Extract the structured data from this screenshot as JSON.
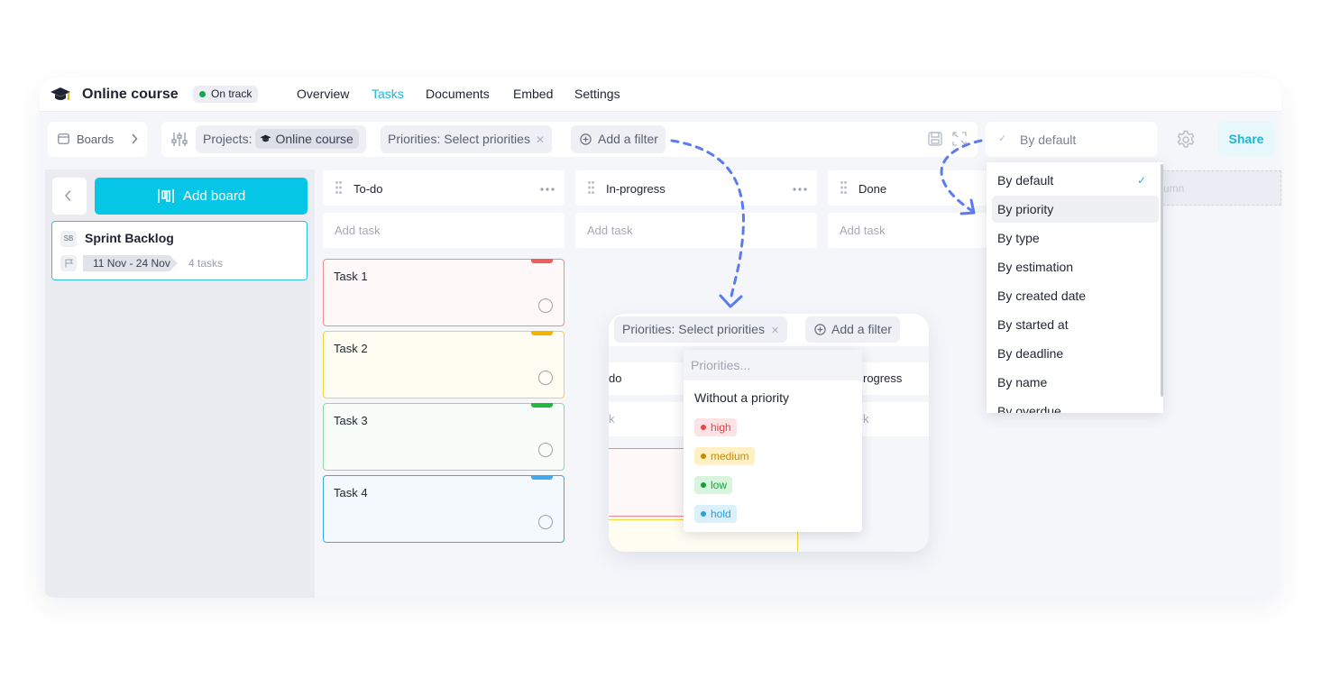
{
  "app": {
    "title": "Online course",
    "status": "On track",
    "status_color": "#12a84b",
    "accent": "#1fb6d3",
    "nav": [
      "Overview",
      "Tasks",
      "Documents",
      "Embed",
      "Settings"
    ],
    "active_nav": "Tasks"
  },
  "toolbar": {
    "boards_label": "Boards",
    "projects_prefix": "Projects:",
    "project_value": "Online course",
    "priorities_filter": "Priorities: Select priorities",
    "add_filter": "Add a filter",
    "sort_value": "By default",
    "share_label": "Share",
    "icons": [
      "board-icon",
      "chevron-right-icon",
      "sliders-icon",
      "close-icon",
      "add-circle-icon",
      "save-icon",
      "expand-icon",
      "check-icon",
      "gear-icon"
    ]
  },
  "sidebar": {
    "add_board_label": "Add board",
    "board": {
      "badge": "SB",
      "name": "Sprint Backlog",
      "dates": "11 Nov - 24 Nov",
      "task_count": "4 tasks"
    }
  },
  "columns": [
    {
      "title": "To-do",
      "add_task": "Add task"
    },
    {
      "title": "In-progress",
      "add_task": "Add task"
    },
    {
      "title": "Done",
      "add_task": "Add task"
    }
  ],
  "ghost_column_text": "umn",
  "tasks": [
    {
      "title": "Task 1",
      "border": "#f28b8b",
      "bg": "#fff8f8",
      "tag": "#f45b5b"
    },
    {
      "title": "Task 2",
      "border": "#f5d33a",
      "bg": "#fffdf2",
      "tag": "#f5b400"
    },
    {
      "title": "Task 3",
      "border": "#8fd9a0",
      "bg": "#f8fdf9",
      "tag": "#1dbb3c"
    },
    {
      "title": "Task 4",
      "border": "#3aa8e8",
      "bg": "#f4f9fd",
      "tag": "#42a9ee"
    }
  ],
  "sort_menu": {
    "items": [
      "By default",
      "By priority",
      "By type",
      "By estimation",
      "By created date",
      "By started at",
      "By deadline",
      "By name",
      "By overdue"
    ],
    "selected": "By default",
    "hovered": "By priority"
  },
  "inset": {
    "filter_chip": "Priorities: Select priorities",
    "add_filter": "Add a filter",
    "col_left": "do",
    "col_right": "rogress",
    "add_left": "k",
    "add_right": "k"
  },
  "priority_dropdown": {
    "placeholder": "Priorities...",
    "none_label": "Without a priority",
    "options": [
      {
        "label": "high",
        "color": "#e8454d",
        "bg": "#fde3e4"
      },
      {
        "label": "medium",
        "color": "#c98a00",
        "bg": "#fff1c4"
      },
      {
        "label": "low",
        "color": "#14a13a",
        "bg": "#d8f5dd"
      },
      {
        "label": "hold",
        "color": "#2d9fdb",
        "bg": "#daf0fb"
      }
    ]
  }
}
